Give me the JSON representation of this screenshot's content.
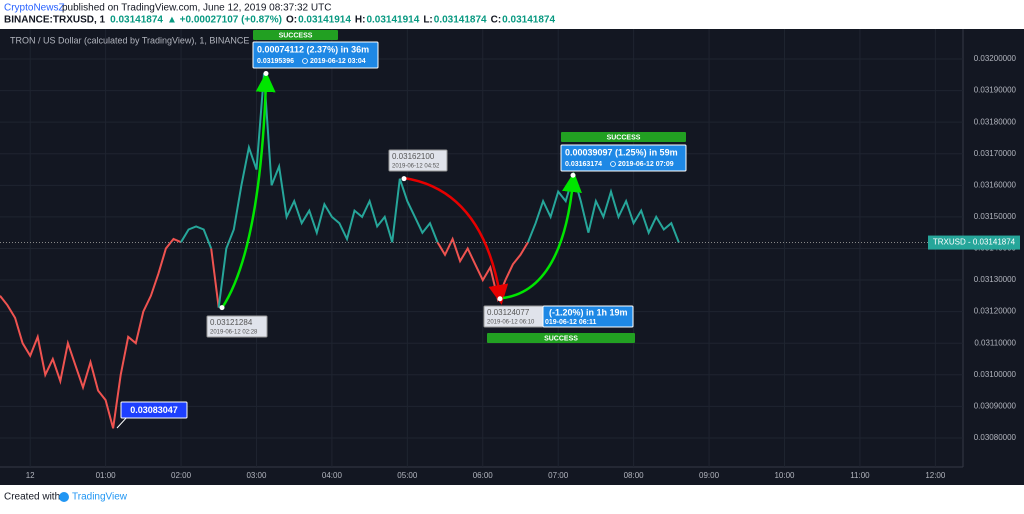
{
  "header": {
    "author": "CryptoNewsZ",
    "published": "published on TradingView.com, June 12, 2019 08:37:32 UTC",
    "symbol": "BINANCE:TRXUSD, 1",
    "last": "0.03141874",
    "change": "▲ +0.00027107 (+0.87%)",
    "ohlc": [
      {
        "label": "O:",
        "value": "0.03141914"
      },
      {
        "label": "H:",
        "value": "0.03141914"
      },
      {
        "label": "L:",
        "value": "0.03141874"
      },
      {
        "label": "C:",
        "value": "0.03141874"
      }
    ]
  },
  "chart_data": {
    "type": "line",
    "title": "TRON / US Dollar (calculated by TradingView), 1, BINANCE",
    "xlim": [
      -24,
      742
    ],
    "ylim": [
      0.030708,
      0.032095
    ],
    "grid": true,
    "xticks": [
      {
        "value": 0,
        "label": "12"
      },
      {
        "value": 60,
        "label": "01:00"
      },
      {
        "value": 120,
        "label": "02:00"
      },
      {
        "value": 180,
        "label": "03:00"
      },
      {
        "value": 240,
        "label": "04:00"
      },
      {
        "value": 300,
        "label": "05:00"
      },
      {
        "value": 360,
        "label": "06:00"
      },
      {
        "value": 420,
        "label": "07:00"
      },
      {
        "value": 480,
        "label": "08:00"
      },
      {
        "value": 540,
        "label": "09:00"
      },
      {
        "value": 600,
        "label": "10:00"
      },
      {
        "value": 660,
        "label": "11:00"
      },
      {
        "value": 720,
        "label": "12:00"
      }
    ],
    "yticks": [
      {
        "value": 0.0308,
        "label": "0.03080000"
      },
      {
        "value": 0.0309,
        "label": "0.03090000"
      },
      {
        "value": 0.031,
        "label": "0.03100000"
      },
      {
        "value": 0.0311,
        "label": "0.03110000"
      },
      {
        "value": 0.0312,
        "label": "0.03120000"
      },
      {
        "value": 0.0313,
        "label": "0.03130000"
      },
      {
        "value": 0.0314,
        "label": "0.03140000"
      },
      {
        "value": 0.0315,
        "label": "0.03150000"
      },
      {
        "value": 0.0316,
        "label": "0.03160000"
      },
      {
        "value": 0.0317,
        "label": "0.03170000"
      },
      {
        "value": 0.0318,
        "label": "0.03180000"
      },
      {
        "value": 0.0319,
        "label": "0.03190000"
      },
      {
        "value": 0.032,
        "label": "0.03200000"
      }
    ],
    "series": [
      {
        "color": "#ef5350",
        "x": [
          -24,
          -18,
          -12,
          -6,
          0,
          6,
          12,
          18,
          24,
          30,
          36,
          42,
          48,
          54,
          60,
          66,
          72,
          78,
          84,
          90,
          96,
          102,
          108,
          114,
          120
        ],
        "values": [
          0.03125,
          0.03122,
          0.03118,
          0.0311,
          0.03106,
          0.03112,
          0.031,
          0.03105,
          0.03098,
          0.0311,
          0.03103,
          0.03096,
          0.03104,
          0.03095,
          0.03092,
          0.03083047,
          0.031,
          0.03112,
          0.0311,
          0.0312,
          0.03125,
          0.03132,
          0.0314,
          0.03143,
          0.03142
        ]
      },
      {
        "color": "#26a69a",
        "x": [
          120,
          126,
          132,
          138,
          144
        ],
        "values": [
          0.03142,
          0.03146,
          0.03147,
          0.03146,
          0.0314
        ]
      },
      {
        "color": "#ef5350",
        "x": [
          144,
          150
        ],
        "values": [
          0.0314,
          0.03121284
        ]
      },
      {
        "color": "#26a69a",
        "x": [
          150,
          156,
          162,
          168,
          174,
          180,
          186,
          192,
          198,
          204,
          210,
          216,
          222,
          228,
          234,
          240,
          246,
          252,
          258,
          264,
          270,
          276,
          282,
          288,
          294,
          300,
          306,
          312,
          318,
          324
        ],
        "values": [
          0.03121284,
          0.0314,
          0.03146,
          0.0316,
          0.03172,
          0.03165,
          0.03195396,
          0.0316,
          0.03166,
          0.0315,
          0.03155,
          0.03148,
          0.03152,
          0.03145,
          0.03154,
          0.0315,
          0.03148,
          0.03143,
          0.03152,
          0.0315,
          0.03155,
          0.03147,
          0.0315,
          0.03142,
          0.031621,
          0.03155,
          0.0315,
          0.03145,
          0.03148,
          0.03142
        ]
      },
      {
        "color": "#ef5350",
        "x": [
          324,
          330,
          336,
          342,
          348,
          354,
          360,
          366,
          372,
          378,
          384,
          390,
          396
        ],
        "values": [
          0.03142,
          0.03138,
          0.03143,
          0.03136,
          0.0314,
          0.03135,
          0.0313,
          0.03134,
          0.03124077,
          0.0313,
          0.03135,
          0.03138,
          0.03142
        ]
      },
      {
        "color": "#26a69a",
        "x": [
          396,
          402,
          408,
          414,
          420,
          426,
          432,
          438,
          444,
          450,
          456,
          462,
          468,
          474,
          480,
          486,
          492,
          498,
          504,
          510,
          516
        ],
        "values": [
          0.03142,
          0.03148,
          0.03155,
          0.0315,
          0.03158,
          0.03155,
          0.03163174,
          0.03155,
          0.03145,
          0.03155,
          0.0315,
          0.03158,
          0.0315,
          0.03155,
          0.03148,
          0.03152,
          0.03145,
          0.0315,
          0.03146,
          0.03148,
          0.03141874
        ]
      }
    ],
    "last_price": 0.03141874,
    "price_label": "TRXUSD - 0.03141874",
    "annotations": [
      {
        "change": "0.00074112 (2.37%) in 36m",
        "price": "0.03195396",
        "time": "2019-06-12  03:04",
        "status": "SUCCESS"
      },
      {
        "price": "0.03121284",
        "time": "2019-06-12 02:28"
      },
      {
        "price": "0.03162100",
        "time": "2019-06-12 04:52"
      },
      {
        "change": "0.00039097 (1.25%) in 59m",
        "price": "0.03163174",
        "time": "2019-06-12  07:09",
        "status": "SUCCESS"
      },
      {
        "price": "0.03124077",
        "time": "2019-06-12 06:10"
      },
      {
        "change": "(-1.20%) in 1h 19m",
        "time": "019-06-12  06:11",
        "status": "SUCCESS"
      },
      {
        "price": "0.03083047"
      }
    ]
  },
  "footer": {
    "created": "Created with",
    "brand": "TradingView"
  }
}
